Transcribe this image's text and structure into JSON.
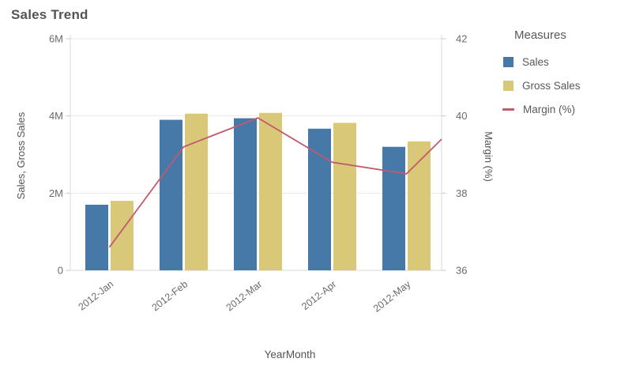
{
  "title": "Sales Trend",
  "legend": {
    "title": "Measures",
    "items": [
      {
        "label": "Sales",
        "swatch": "square",
        "color": "#4678a8"
      },
      {
        "label": "Gross Sales",
        "swatch": "square",
        "color": "#d9c877"
      },
      {
        "label": "Margin (%)",
        "swatch": "line",
        "color": "#c2596e"
      }
    ]
  },
  "chart_data": {
    "type": "combo",
    "categories": [
      "2012-Jan",
      "2012-Feb",
      "2012-Mar",
      "2012-Apr",
      "2012-May"
    ],
    "series": [
      {
        "name": "Sales",
        "type": "bar",
        "axis": "left",
        "color": "#4678a8",
        "values": [
          1700000,
          3900000,
          3940000,
          3670000,
          3200000
        ]
      },
      {
        "name": "Gross Sales",
        "type": "bar",
        "axis": "left",
        "color": "#d9c877",
        "values": [
          1800000,
          4060000,
          4080000,
          3820000,
          3340000
        ]
      },
      {
        "name": "Margin (%)",
        "type": "line",
        "axis": "right",
        "color": "#c2596e",
        "values": [
          36.6,
          39.2,
          39.95,
          38.8,
          38.5
        ],
        "edge_value": 39.4
      }
    ],
    "left_axis": {
      "label": "Sales, Gross Sales",
      "min": 0,
      "max": 6000000,
      "ticks": [
        {
          "label": "0",
          "value": 0
        },
        {
          "label": "2M",
          "value": 2000000
        },
        {
          "label": "4M",
          "value": 4000000
        },
        {
          "label": "6M",
          "value": 6000000
        }
      ]
    },
    "right_axis": {
      "label": "Margin (%)",
      "min": 36,
      "max": 42,
      "ticks": [
        {
          "label": "36",
          "value": 36
        },
        {
          "label": "38",
          "value": 38
        },
        {
          "label": "40",
          "value": 40
        },
        {
          "label": "42",
          "value": 42
        }
      ]
    },
    "x_axis": {
      "label": "YearMonth"
    },
    "grid": true,
    "legend_position": "right",
    "colors": {
      "gridline": "#e9e9e9",
      "axis_border": "#d9d9d9",
      "tick_mark": "#c9c9c9",
      "tick_text": "#6b6b6b",
      "axis_title_text": "#545454"
    }
  }
}
